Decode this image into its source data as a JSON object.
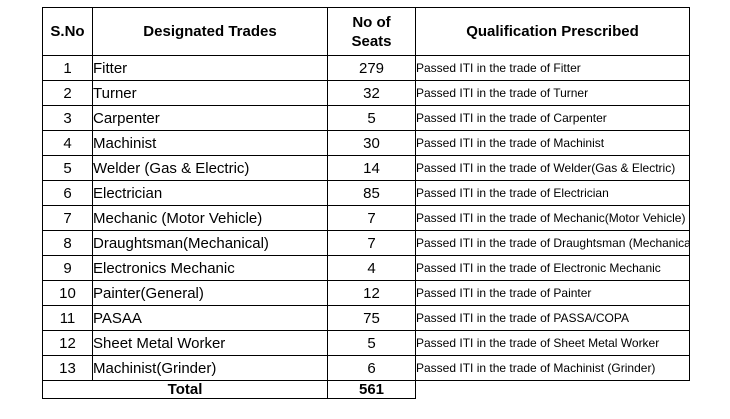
{
  "headers": {
    "sno": "S.No",
    "trade": "Designated Trades",
    "seats_line1": "No of",
    "seats_line2": "Seats",
    "qualification": "Qualification Prescribed"
  },
  "rows": [
    {
      "sno": "1",
      "trade": "Fitter",
      "seats": "279",
      "qualification": "Passed ITI in the trade of Fitter"
    },
    {
      "sno": "2",
      "trade": "Turner",
      "seats": "32",
      "qualification": "Passed ITI in the trade of Turner"
    },
    {
      "sno": "3",
      "trade": "Carpenter",
      "seats": "5",
      "qualification": "Passed ITI in the trade of Carpenter"
    },
    {
      "sno": "4",
      "trade": "Machinist",
      "seats": "30",
      "qualification": "Passed ITI in the trade of Machinist"
    },
    {
      "sno": "5",
      "trade": "Welder (Gas & Electric)",
      "seats": "14",
      "qualification": "Passed ITI in the trade of Welder(Gas & Electric)"
    },
    {
      "sno": "6",
      "trade": "Electrician",
      "seats": "85",
      "qualification": "Passed ITI in the trade of Electrician"
    },
    {
      "sno": "7",
      "trade": "Mechanic (Motor Vehicle)",
      "seats": "7",
      "qualification": "Passed ITI in the trade of Mechanic(Motor Vehicle)"
    },
    {
      "sno": "8",
      "trade": "Draughtsman(Mechanical)",
      "seats": "7",
      "qualification": "Passed ITI in the trade of Draughtsman (Mechanical)"
    },
    {
      "sno": "9",
      "trade": "Electronics Mechanic",
      "seats": "4",
      "qualification": "Passed ITI in the trade of Electronic Mechanic"
    },
    {
      "sno": "10",
      "trade": "Painter(General)",
      "seats": "12",
      "qualification": "Passed ITI in the trade of Painter"
    },
    {
      "sno": "11",
      "trade": "PASAA",
      "seats": "75",
      "qualification": "Passed ITI in the trade of PASSA/COPA"
    },
    {
      "sno": "12",
      "trade": "Sheet Metal Worker",
      "seats": "5",
      "qualification": "Passed ITI in the trade of Sheet Metal Worker"
    },
    {
      "sno": "13",
      "trade": "Machinist(Grinder)",
      "seats": "6",
      "qualification": "Passed ITI in the trade of Machinist (Grinder)"
    }
  ],
  "total": {
    "label": "Total",
    "seats": "561"
  }
}
